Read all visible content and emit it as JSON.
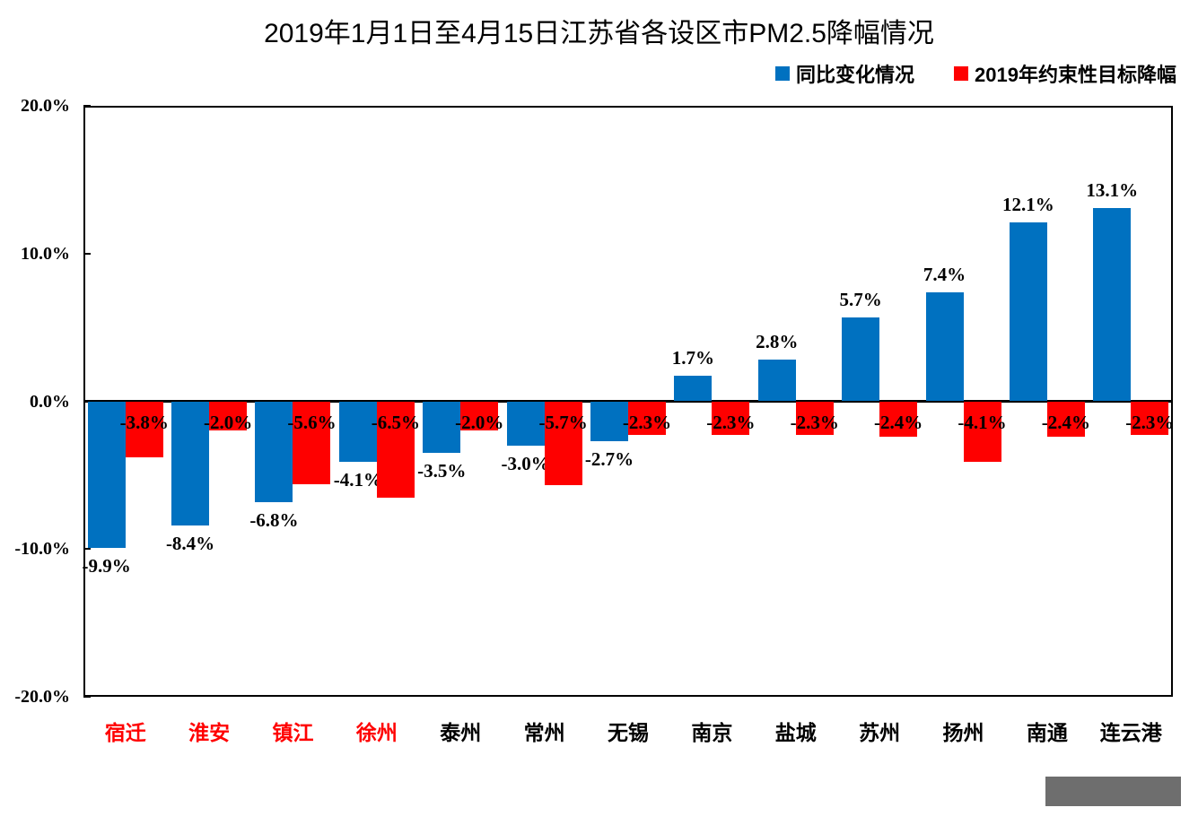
{
  "title": "2019年1月1日至4月15日江苏省各设区市PM2.5降幅情况",
  "legend": {
    "items": [
      {
        "label": "同比变化情况",
        "color": "#0071c0"
      },
      {
        "label": "2019年约束性目标降幅",
        "color": "#fe0000"
      }
    ]
  },
  "colors": {
    "series_blue": "#0071c0",
    "series_red": "#fe0000",
    "highlight_city_label": "#ff0000",
    "normal_city_label": "#000000",
    "axis": "#000000",
    "watermark_box": "#6e6e6e"
  },
  "chart_data": {
    "type": "bar",
    "title": "2019年1月1日至4月15日江苏省各设区市PM2.5降幅情况",
    "categories": [
      "宿迁",
      "淮安",
      "镇江",
      "徐州",
      "泰州",
      "常州",
      "无锡",
      "南京",
      "盐城",
      "苏州",
      "扬州",
      "南通",
      "连云港"
    ],
    "category_label_colors": [
      "#ff0000",
      "#ff0000",
      "#ff0000",
      "#ff0000",
      "#000000",
      "#000000",
      "#000000",
      "#000000",
      "#000000",
      "#000000",
      "#000000",
      "#000000",
      "#000000"
    ],
    "series": [
      {
        "name": "同比变化情况",
        "color": "#0071c0",
        "values": [
          -9.9,
          -8.4,
          -6.8,
          -4.1,
          -3.5,
          -3.0,
          -2.7,
          1.7,
          2.8,
          5.7,
          7.4,
          12.1,
          13.1
        ],
        "labels": [
          "-9.9%",
          "-8.4%",
          "-6.8%",
          "-4.1%",
          "-3.5%",
          "-3.0%",
          "-2.7%",
          "1.7%",
          "2.8%",
          "5.7%",
          "7.4%",
          "12.1%",
          "13.1%"
        ],
        "label_placement": "outside-end"
      },
      {
        "name": "2019年约束性目标降幅",
        "color": "#fe0000",
        "values": [
          -3.8,
          -2.0,
          -5.6,
          -6.5,
          -2.0,
          -5.7,
          -2.3,
          -2.3,
          -2.3,
          -2.4,
          -4.1,
          -2.4,
          -2.3
        ],
        "labels": [
          "-3.8%",
          "-2.0%",
          "-5.6%",
          "-6.5%",
          "-2.0%",
          "-5.7%",
          "-2.3%",
          "-2.3%",
          "-2.3%",
          "-2.4%",
          "-4.1%",
          "-2.4%",
          "-2.3%"
        ],
        "label_placement": "inside-base"
      }
    ],
    "ylim": [
      -20,
      20
    ],
    "yticks": [
      {
        "value": 20,
        "label": "20.0%"
      },
      {
        "value": 10,
        "label": "10.0%"
      },
      {
        "value": 0,
        "label": "0.0%"
      },
      {
        "value": -10,
        "label": "-10.0%"
      },
      {
        "value": -20,
        "label": "-20.0%"
      }
    ],
    "grid": false,
    "legend_position": "top-right"
  }
}
